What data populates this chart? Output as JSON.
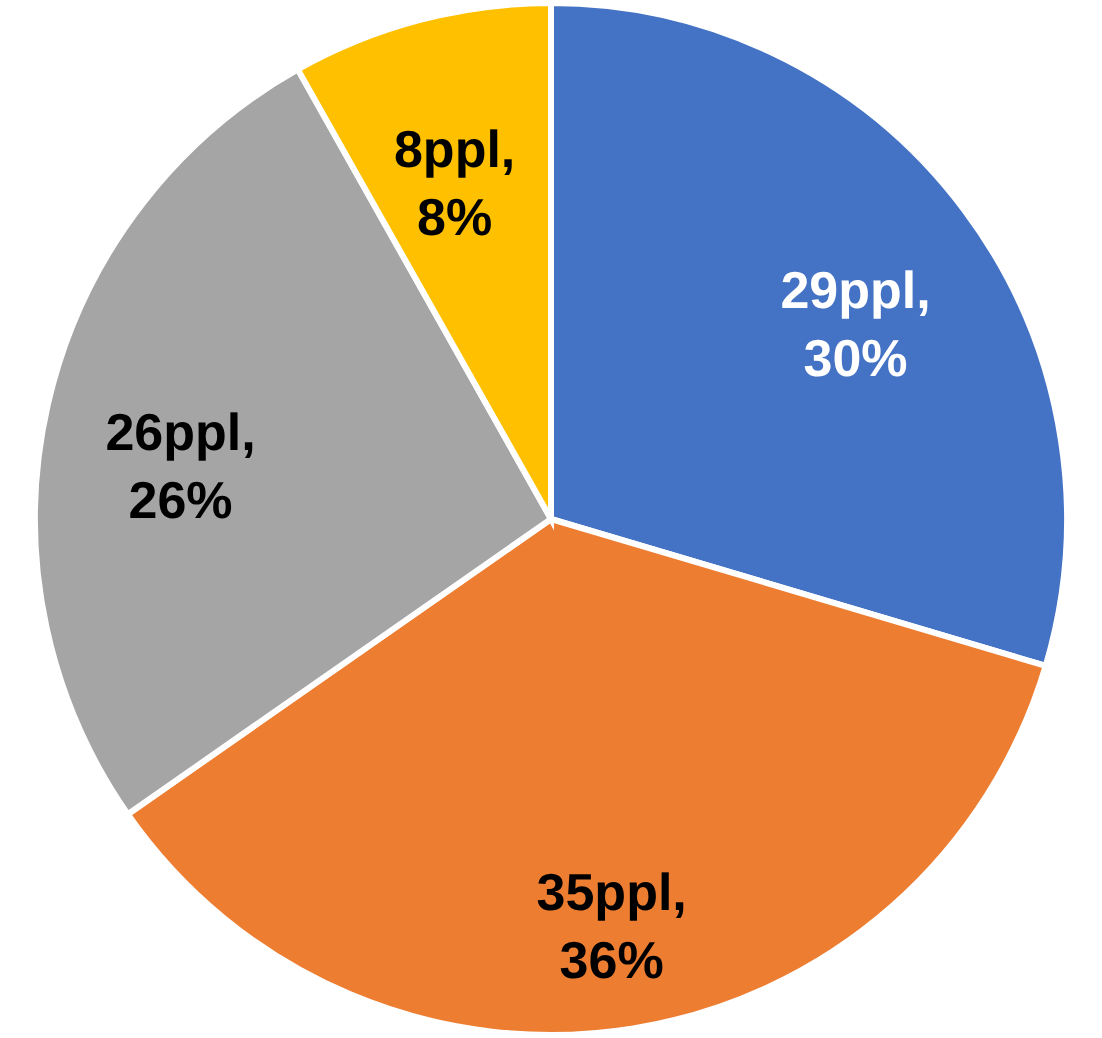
{
  "chart_data": {
    "type": "pie",
    "categories": [
      null,
      null,
      null,
      null
    ],
    "values": [
      29,
      35,
      26,
      8
    ],
    "colors": [
      "#4472c4",
      "#ed7d31",
      "#a5a5a5",
      "#ffc000"
    ],
    "value_labels": [
      "29ppl, 30%",
      "35ppl, 36%",
      "26ppl, 26%",
      "8ppl, 8%"
    ],
    "legend": false
  }
}
